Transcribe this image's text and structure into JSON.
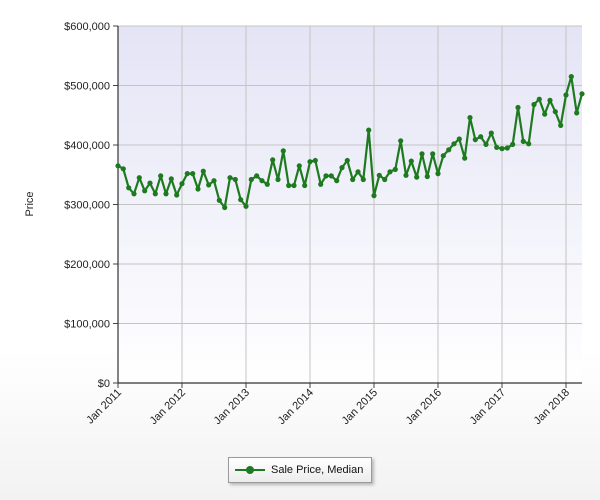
{
  "chart_data": {
    "type": "line",
    "title": "",
    "ylabel": "Price",
    "xlabel": "",
    "ylim": [
      0,
      600000
    ],
    "y_ticks": [
      {
        "value": 0,
        "label": "$0"
      },
      {
        "value": 100000,
        "label": "$100,000"
      },
      {
        "value": 200000,
        "label": "$200,000"
      },
      {
        "value": 300000,
        "label": "$300,000"
      },
      {
        "value": 400000,
        "label": "$400,000"
      },
      {
        "value": 500000,
        "label": "$500,000"
      },
      {
        "value": 600000,
        "label": "$600,000"
      }
    ],
    "x_ticks": [
      {
        "label": "Jan 2011",
        "year": 2011
      },
      {
        "label": "Jan 2012",
        "year": 2012
      },
      {
        "label": "Jan 2013",
        "year": 2013
      },
      {
        "label": "Jan 2014",
        "year": 2014
      },
      {
        "label": "Jan 2015",
        "year": 2015
      },
      {
        "label": "Jan 2016",
        "year": 2016
      },
      {
        "label": "Jan 2017",
        "year": 2017
      },
      {
        "label": "Jan 2018",
        "year": 2018
      }
    ],
    "grid": true,
    "legend_position": "bottom-center",
    "colors": {
      "series": "#1e7a1e",
      "plot_background": "#e9e9f7",
      "grid": "#c4c4c4"
    },
    "series": [
      {
        "name": "Sale Price, Median",
        "start": "Jan 2011",
        "frequency": "monthly",
        "values": [
          365000,
          360000,
          328000,
          318000,
          345000,
          323000,
          336000,
          318000,
          348000,
          318000,
          343000,
          316000,
          335000,
          352000,
          352000,
          326000,
          356000,
          333000,
          340000,
          307000,
          295000,
          345000,
          342000,
          308000,
          297000,
          342000,
          348000,
          340000,
          334000,
          375000,
          342000,
          390000,
          332000,
          332000,
          365000,
          332000,
          372000,
          374000,
          334000,
          348000,
          348000,
          340000,
          362000,
          374000,
          342000,
          355000,
          342000,
          425000,
          315000,
          349000,
          342000,
          355000,
          359000,
          407000,
          349000,
          373000,
          346000,
          385000,
          347000,
          385000,
          352000,
          382000,
          392000,
          402000,
          410000,
          378000,
          446000,
          409000,
          414000,
          401000,
          420000,
          396000,
          394000,
          395000,
          401000,
          463000,
          406000,
          402000,
          468000,
          477000,
          452000,
          475000,
          456000,
          433000,
          484000,
          515000,
          454000,
          486000
        ]
      }
    ]
  }
}
